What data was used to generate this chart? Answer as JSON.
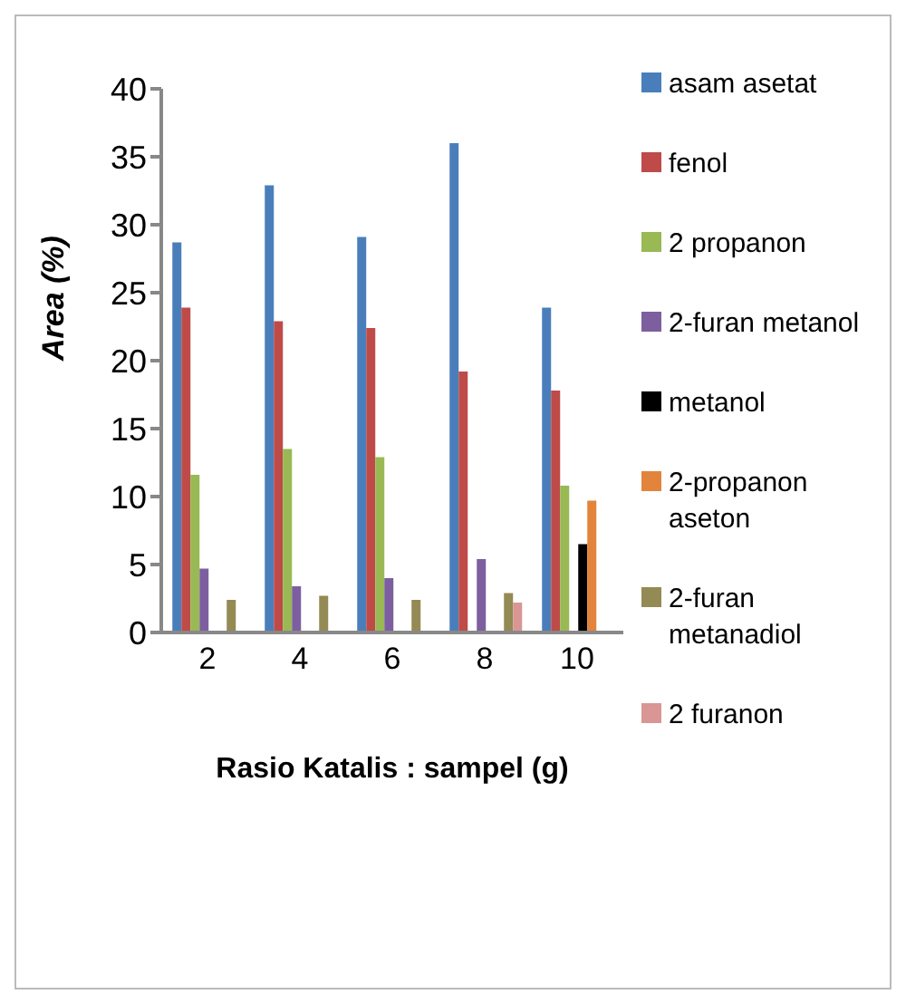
{
  "chart_data": {
    "type": "bar",
    "xlabel": "Rasio Katalis : sampel (g)",
    "ylabel": "Area  (%)",
    "categories": [
      "2",
      "4",
      "6",
      "8",
      "10"
    ],
    "series": [
      {
        "name": "asam asetat",
        "color": "#4a7ebb",
        "values": [
          28.7,
          32.9,
          29.1,
          36.0,
          23.9
        ]
      },
      {
        "name": "fenol",
        "color": "#be4b48",
        "values": [
          23.9,
          22.9,
          22.4,
          19.2,
          17.8
        ]
      },
      {
        "name": "2 propanon",
        "color": "#98b954",
        "values": [
          11.6,
          13.5,
          12.9,
          null,
          10.8
        ]
      },
      {
        "name": "2-furan metanol",
        "color": "#7d5fa0",
        "values": [
          4.7,
          3.4,
          4.0,
          5.4,
          null
        ]
      },
      {
        "name": "metanol",
        "color": "#000000",
        "values": [
          null,
          null,
          null,
          null,
          6.5
        ]
      },
      {
        "name": "2-propanon aseton",
        "color": "#e3843c",
        "values": [
          null,
          null,
          null,
          null,
          9.7
        ]
      },
      {
        "name": "2-furan metanadiol",
        "color": "#948a54",
        "values": [
          2.4,
          2.7,
          2.4,
          2.9,
          null
        ]
      },
      {
        "name": "2 furanon",
        "color": "#d99694",
        "values": [
          null,
          null,
          null,
          2.2,
          null
        ]
      }
    ],
    "ylim": [
      0,
      40
    ],
    "yticks": [
      0,
      5,
      10,
      15,
      20,
      25,
      30,
      35,
      40
    ],
    "grid": false,
    "legend": "right"
  }
}
